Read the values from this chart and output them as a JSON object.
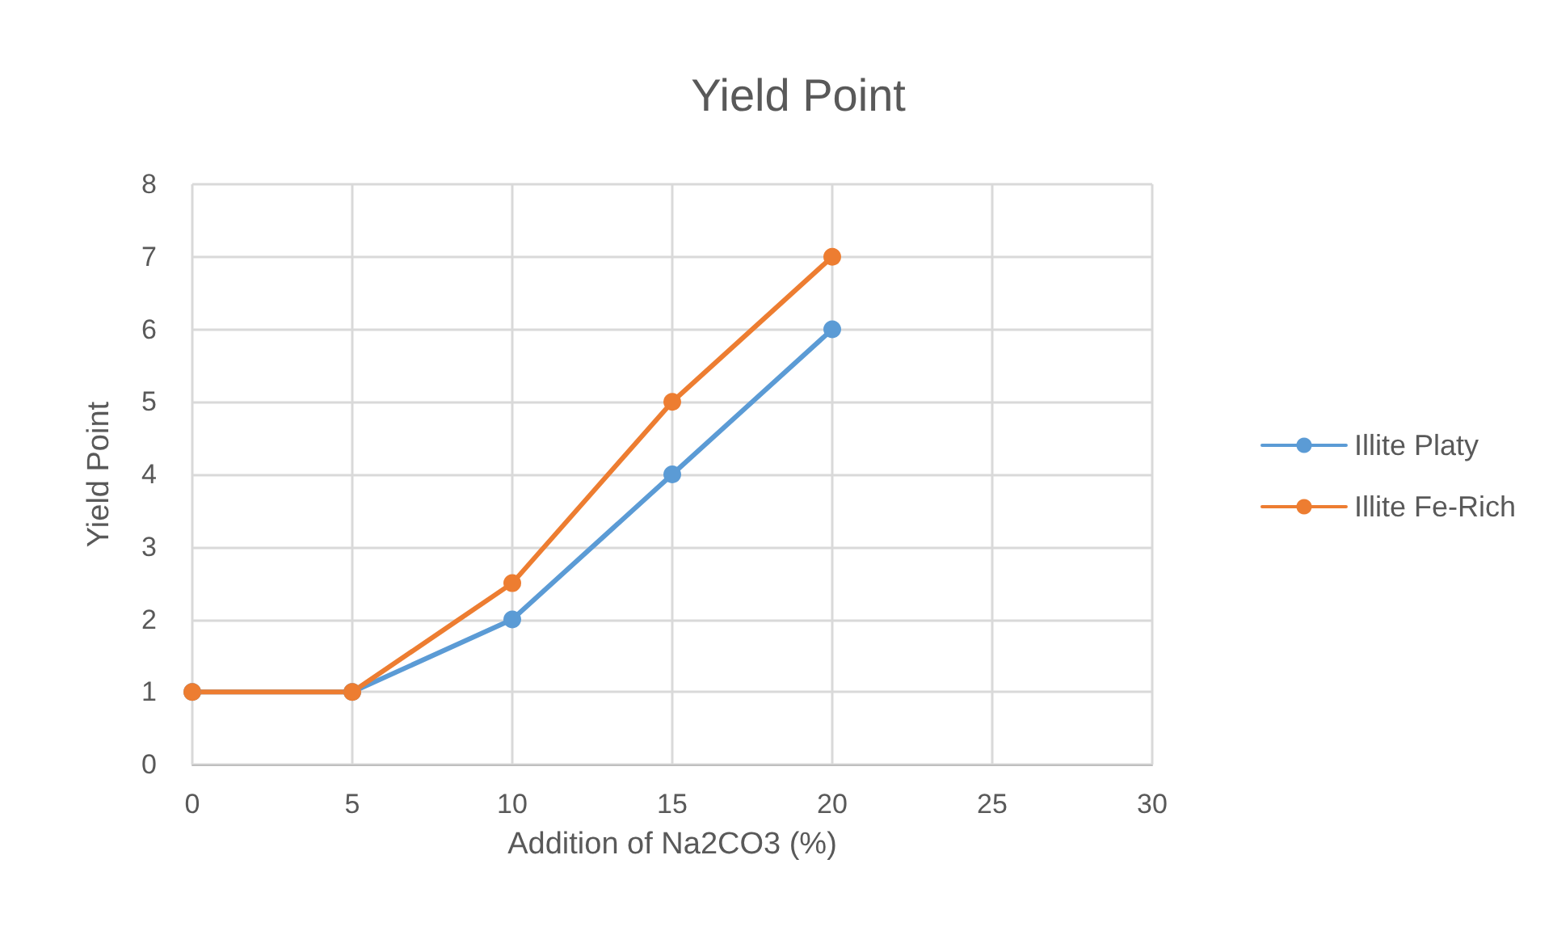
{
  "chart_data": {
    "type": "line",
    "title": "Yield Point",
    "xlabel": "Addition of Na2CO3 (%)",
    "ylabel": "Yield Point",
    "x": [
      0,
      5,
      10,
      15,
      20
    ],
    "series": [
      {
        "name": "Illite Platy",
        "color": "#5b9bd5",
        "values": [
          1,
          1,
          2,
          4,
          6
        ]
      },
      {
        "name": "Illite Fe-Rich",
        "color": "#ed7d31",
        "values": [
          1,
          1,
          2.5,
          5,
          7
        ]
      }
    ],
    "xlim": [
      0,
      30
    ],
    "xticks": [
      0,
      5,
      10,
      15,
      20,
      25,
      30
    ],
    "ylim": [
      0,
      8
    ],
    "yticks": [
      0,
      1,
      2,
      3,
      4,
      5,
      6,
      7,
      8
    ],
    "grid": true,
    "legend": "right",
    "marker": "circle",
    "line_style": "solid"
  }
}
